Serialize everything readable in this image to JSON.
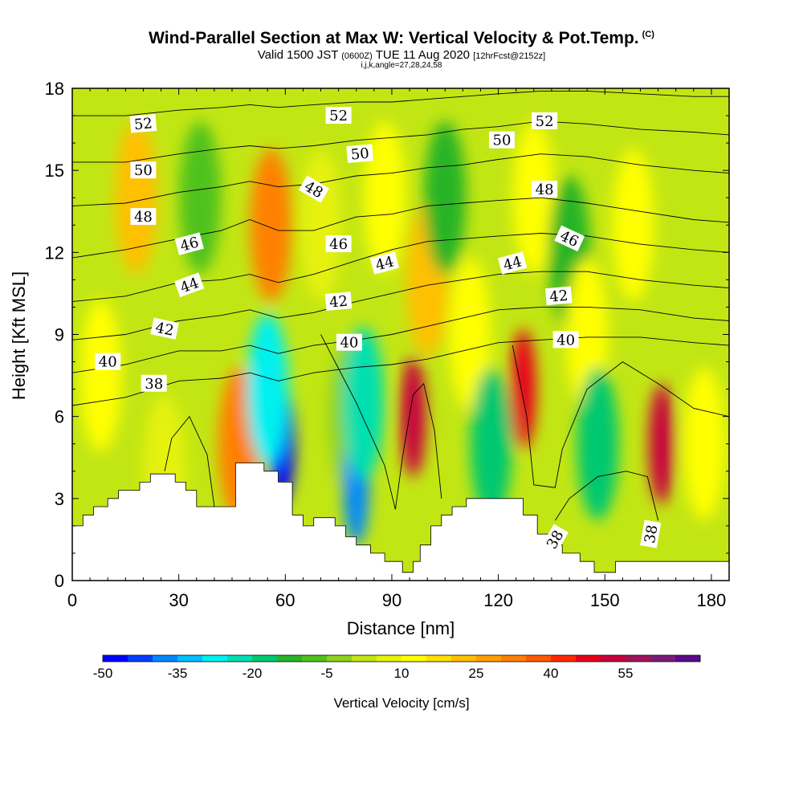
{
  "header": {
    "title": "Wind-Parallel Section at Max W: Vertical Velocity & Pot.Temp.",
    "copyright": "(C)",
    "valid_prefix": "Valid 1500 JST",
    "valid_utc": "(0600Z)",
    "valid_suffix": "TUE 11 Aug 2020",
    "forecast": "[12hrFcst@2152z]",
    "indices": "i,j,k,angle=27,28,24,58"
  },
  "chart_data": {
    "type": "heatmap",
    "xlabel": "Distance [nm]",
    "ylabel": "Height [Kft MSL]",
    "xlim": [
      0,
      185
    ],
    "ylim": [
      0,
      18
    ],
    "xticks": [
      0,
      30,
      60,
      90,
      120,
      150,
      180
    ],
    "yticks": [
      0,
      3,
      6,
      9,
      12,
      15,
      18
    ],
    "colorbar": {
      "label": "Vertical Velocity [cm/s]",
      "levels": [
        -50,
        -45,
        -40,
        -35,
        -30,
        -25,
        -20,
        -15,
        -10,
        -5,
        0,
        5,
        10,
        15,
        20,
        25,
        30,
        35,
        40,
        45,
        50,
        55,
        60,
        65
      ],
      "tick_labels": [
        -50,
        -35,
        -20,
        -5,
        10,
        25,
        40,
        55
      ],
      "colors": [
        "#0000ff",
        "#0040ff",
        "#0088ff",
        "#00c0ff",
        "#00f0f0",
        "#00dfb0",
        "#00c870",
        "#28b428",
        "#4fc21e",
        "#8ed11e",
        "#c2e614",
        "#e6f20a",
        "#ffff00",
        "#ffe000",
        "#ffc000",
        "#ffa000",
        "#ff8000",
        "#ff5a00",
        "#ff2a00",
        "#e6001e",
        "#c8003c",
        "#a0145a",
        "#781e78",
        "#5a0a8c"
      ]
    },
    "vertical_velocity_cells": [
      {
        "x": 8,
        "y": 7.5,
        "w": 10
      },
      {
        "x": 18,
        "y": 14.0,
        "w": 20
      },
      {
        "x": 26,
        "y": 4.0,
        "w": 5
      },
      {
        "x": 36,
        "y": 14.0,
        "w": -10
      },
      {
        "x": 47,
        "y": 5.0,
        "w": 30
      },
      {
        "x": 56,
        "y": 13.0,
        "w": 30
      },
      {
        "x": 59,
        "y": 5.0,
        "w": -50
      },
      {
        "x": 55,
        "y": 7.0,
        "w": -30
      },
      {
        "x": 70,
        "y": 13.0,
        "w": 5
      },
      {
        "x": 78,
        "y": 6.0,
        "w": -5
      },
      {
        "x": 80,
        "y": 3.5,
        "w": -40
      },
      {
        "x": 82,
        "y": 6.5,
        "w": -25
      },
      {
        "x": 88,
        "y": 14.0,
        "w": 10
      },
      {
        "x": 96,
        "y": 6.0,
        "w": 50
      },
      {
        "x": 100,
        "y": 11.0,
        "w": 20
      },
      {
        "x": 105,
        "y": 14.0,
        "w": -15
      },
      {
        "x": 112,
        "y": 9.0,
        "w": 10
      },
      {
        "x": 118,
        "y": 5.0,
        "w": -20
      },
      {
        "x": 127,
        "y": 7.0,
        "w": 45
      },
      {
        "x": 130,
        "y": 14.0,
        "w": 10
      },
      {
        "x": 140,
        "y": 12.0,
        "w": -15
      },
      {
        "x": 145,
        "y": 9.0,
        "w": 10
      },
      {
        "x": 148,
        "y": 5.0,
        "w": -20
      },
      {
        "x": 158,
        "y": 13.0,
        "w": 10
      },
      {
        "x": 166,
        "y": 5.0,
        "w": 50
      },
      {
        "x": 178,
        "y": 5.0,
        "w": 12
      }
    ],
    "terrain": [
      [
        0,
        2.0
      ],
      [
        3,
        2.0
      ],
      [
        3,
        2.4
      ],
      [
        6,
        2.4
      ],
      [
        6,
        2.7
      ],
      [
        10,
        2.7
      ],
      [
        10,
        3.0
      ],
      [
        13,
        3.0
      ],
      [
        13,
        3.3
      ],
      [
        19,
        3.3
      ],
      [
        19,
        3.6
      ],
      [
        22,
        3.6
      ],
      [
        22,
        3.9
      ],
      [
        29,
        3.9
      ],
      [
        29,
        3.6
      ],
      [
        32,
        3.6
      ],
      [
        32,
        3.3
      ],
      [
        35,
        3.3
      ],
      [
        35,
        2.7
      ],
      [
        46,
        2.7
      ],
      [
        46,
        4.3
      ],
      [
        54,
        4.3
      ],
      [
        54,
        4.0
      ],
      [
        58,
        4.0
      ],
      [
        58,
        3.6
      ],
      [
        62,
        3.6
      ],
      [
        62,
        2.4
      ],
      [
        65,
        2.4
      ],
      [
        65,
        2.0
      ],
      [
        68,
        2.0
      ],
      [
        68,
        2.3
      ],
      [
        74,
        2.3
      ],
      [
        74,
        2.0
      ],
      [
        77,
        2.0
      ],
      [
        77,
        1.6
      ],
      [
        80,
        1.6
      ],
      [
        80,
        1.3
      ],
      [
        84,
        1.3
      ],
      [
        84,
        1.0
      ],
      [
        88,
        1.0
      ],
      [
        88,
        0.7
      ],
      [
        93,
        0.7
      ],
      [
        93,
        0.3
      ],
      [
        96,
        0.3
      ],
      [
        96,
        0.7
      ],
      [
        98,
        0.7
      ],
      [
        98,
        1.3
      ],
      [
        101,
        1.3
      ],
      [
        101,
        2.0
      ],
      [
        104,
        2.0
      ],
      [
        104,
        2.4
      ],
      [
        107,
        2.4
      ],
      [
        107,
        2.7
      ],
      [
        111,
        2.7
      ],
      [
        111,
        3.0
      ],
      [
        127,
        3.0
      ],
      [
        127,
        2.4
      ],
      [
        131,
        2.4
      ],
      [
        131,
        1.7
      ],
      [
        135,
        1.7
      ],
      [
        135,
        1.3
      ],
      [
        138,
        1.3
      ],
      [
        138,
        1.0
      ],
      [
        143,
        1.0
      ],
      [
        143,
        0.7
      ],
      [
        147,
        0.7
      ],
      [
        147,
        0.3
      ],
      [
        153,
        0.3
      ],
      [
        153,
        0.7
      ],
      [
        185,
        0.7
      ]
    ],
    "isentropes": [
      {
        "value": 38,
        "points": [
          [
            0,
            6.4
          ],
          [
            15,
            6.7
          ],
          [
            30,
            7.3
          ],
          [
            42,
            7.4
          ],
          [
            50,
            7.6
          ],
          [
            58,
            7.3
          ],
          [
            68,
            7.6
          ],
          [
            80,
            7.8
          ],
          [
            90,
            7.9
          ],
          [
            100,
            8.1
          ],
          [
            110,
            8.4
          ],
          [
            120,
            8.7
          ],
          [
            132,
            8.8
          ],
          [
            145,
            8.9
          ],
          [
            160,
            8.9
          ],
          [
            175,
            8.7
          ],
          [
            185,
            8.6
          ]
        ]
      },
      {
        "value": 40,
        "points": [
          [
            0,
            7.6
          ],
          [
            15,
            7.9
          ],
          [
            30,
            8.4
          ],
          [
            42,
            8.4
          ],
          [
            50,
            8.6
          ],
          [
            58,
            8.3
          ],
          [
            68,
            8.6
          ],
          [
            80,
            8.8
          ],
          [
            90,
            9.0
          ],
          [
            100,
            9.3
          ],
          [
            110,
            9.6
          ],
          [
            120,
            9.9
          ],
          [
            132,
            10.0
          ],
          [
            145,
            10.0
          ],
          [
            160,
            9.9
          ],
          [
            175,
            9.6
          ],
          [
            185,
            9.5
          ]
        ]
      },
      {
        "value": 42,
        "points": [
          [
            0,
            8.8
          ],
          [
            15,
            9.0
          ],
          [
            30,
            9.5
          ],
          [
            42,
            9.7
          ],
          [
            50,
            9.9
          ],
          [
            58,
            9.6
          ],
          [
            68,
            9.8
          ],
          [
            80,
            10.2
          ],
          [
            90,
            10.5
          ],
          [
            100,
            10.8
          ],
          [
            110,
            11.0
          ],
          [
            120,
            11.2
          ],
          [
            132,
            11.3
          ],
          [
            145,
            11.3
          ],
          [
            160,
            11.0
          ],
          [
            175,
            10.8
          ],
          [
            185,
            10.7
          ]
        ]
      },
      {
        "value": 44,
        "points": [
          [
            0,
            10.2
          ],
          [
            15,
            10.4
          ],
          [
            30,
            10.9
          ],
          [
            42,
            11.0
          ],
          [
            50,
            11.2
          ],
          [
            58,
            10.9
          ],
          [
            68,
            11.2
          ],
          [
            80,
            11.7
          ],
          [
            90,
            12.1
          ],
          [
            100,
            12.4
          ],
          [
            110,
            12.5
          ],
          [
            120,
            12.6
          ],
          [
            132,
            12.7
          ],
          [
            145,
            12.6
          ],
          [
            160,
            12.3
          ],
          [
            175,
            12.1
          ],
          [
            185,
            12.0
          ]
        ]
      },
      {
        "value": 46,
        "points": [
          [
            0,
            11.8
          ],
          [
            15,
            12.1
          ],
          [
            30,
            12.5
          ],
          [
            42,
            12.8
          ],
          [
            50,
            13.2
          ],
          [
            58,
            12.8
          ],
          [
            68,
            12.8
          ],
          [
            80,
            13.3
          ],
          [
            90,
            13.4
          ],
          [
            100,
            13.7
          ],
          [
            110,
            13.8
          ],
          [
            120,
            13.9
          ],
          [
            132,
            14.0
          ],
          [
            145,
            13.8
          ],
          [
            160,
            13.5
          ],
          [
            175,
            13.2
          ],
          [
            185,
            13.1
          ]
        ]
      },
      {
        "value": 48,
        "points": [
          [
            0,
            13.7
          ],
          [
            15,
            13.8
          ],
          [
            30,
            14.2
          ],
          [
            42,
            14.4
          ],
          [
            50,
            14.6
          ],
          [
            58,
            14.4
          ],
          [
            68,
            14.5
          ],
          [
            80,
            14.8
          ],
          [
            90,
            14.9
          ],
          [
            100,
            15.1
          ],
          [
            110,
            15.2
          ],
          [
            120,
            15.4
          ],
          [
            132,
            15.6
          ],
          [
            145,
            15.5
          ],
          [
            160,
            15.2
          ],
          [
            175,
            15.0
          ],
          [
            185,
            14.9
          ]
        ]
      },
      {
        "value": 50,
        "points": [
          [
            0,
            15.3
          ],
          [
            15,
            15.3
          ],
          [
            30,
            15.6
          ],
          [
            42,
            15.8
          ],
          [
            50,
            15.9
          ],
          [
            58,
            15.8
          ],
          [
            68,
            15.9
          ],
          [
            80,
            16.1
          ],
          [
            90,
            16.2
          ],
          [
            100,
            16.3
          ],
          [
            110,
            16.5
          ],
          [
            120,
            16.6
          ],
          [
            132,
            16.8
          ],
          [
            145,
            16.7
          ],
          [
            160,
            16.5
          ],
          [
            175,
            16.4
          ],
          [
            185,
            16.3
          ]
        ]
      },
      {
        "value": 52,
        "points": [
          [
            0,
            17.0
          ],
          [
            15,
            17.0
          ],
          [
            30,
            17.2
          ],
          [
            42,
            17.3
          ],
          [
            50,
            17.4
          ],
          [
            58,
            17.3
          ],
          [
            68,
            17.4
          ],
          [
            80,
            17.5
          ],
          [
            90,
            17.5
          ],
          [
            100,
            17.6
          ],
          [
            110,
            17.7
          ],
          [
            120,
            17.8
          ],
          [
            132,
            17.9
          ],
          [
            145,
            17.9
          ],
          [
            160,
            17.8
          ],
          [
            175,
            17.7
          ],
          [
            185,
            17.7
          ]
        ]
      }
    ],
    "contour_labels": [
      {
        "text": "52",
        "x": 20,
        "y": 16.7,
        "rot": -5
      },
      {
        "text": "50",
        "x": 20,
        "y": 15.0,
        "rot": 0
      },
      {
        "text": "48",
        "x": 20,
        "y": 13.3,
        "rot": 0
      },
      {
        "text": "46",
        "x": 33,
        "y": 12.3,
        "rot": -15
      },
      {
        "text": "44",
        "x": 33,
        "y": 10.8,
        "rot": -20
      },
      {
        "text": "42",
        "x": 26,
        "y": 9.2,
        "rot": 12
      },
      {
        "text": "40",
        "x": 10,
        "y": 8.0,
        "rot": 0
      },
      {
        "text": "38",
        "x": 23,
        "y": 7.2,
        "rot": 0
      },
      {
        "text": "52",
        "x": 75,
        "y": 17.0,
        "rot": 0
      },
      {
        "text": "50",
        "x": 81,
        "y": 15.6,
        "rot": -5
      },
      {
        "text": "48",
        "x": 68,
        "y": 14.3,
        "rot": 30
      },
      {
        "text": "46",
        "x": 75,
        "y": 12.3,
        "rot": 0
      },
      {
        "text": "44",
        "x": 88,
        "y": 11.6,
        "rot": -15
      },
      {
        "text": "42",
        "x": 75,
        "y": 10.2,
        "rot": -5
      },
      {
        "text": "40",
        "x": 78,
        "y": 8.7,
        "rot": 0
      },
      {
        "text": "52",
        "x": 133,
        "y": 16.8,
        "rot": 0
      },
      {
        "text": "50",
        "x": 121,
        "y": 16.1,
        "rot": 0
      },
      {
        "text": "48",
        "x": 133,
        "y": 14.3,
        "rot": 0
      },
      {
        "text": "46",
        "x": 140,
        "y": 12.5,
        "rot": 25
      },
      {
        "text": "44",
        "x": 124,
        "y": 11.6,
        "rot": -15
      },
      {
        "text": "42",
        "x": 137,
        "y": 10.4,
        "rot": -5
      },
      {
        "text": "40",
        "x": 139,
        "y": 8.8,
        "rot": 0
      },
      {
        "text": "38",
        "x": 136,
        "y": 1.5,
        "rot": -60
      },
      {
        "text": "38",
        "x": 163,
        "y": 1.7,
        "rot": -80
      }
    ],
    "low_level_contours": [
      {
        "value": 38,
        "points": [
          [
            26,
            4.0
          ],
          [
            28,
            5.2
          ],
          [
            33,
            6.0
          ],
          [
            38,
            4.6
          ],
          [
            40,
            2.7
          ]
        ]
      },
      {
        "value": 38,
        "points": [
          [
            70,
            9.0
          ],
          [
            80,
            6.5
          ],
          [
            88,
            4.2
          ],
          [
            91,
            2.6
          ],
          [
            93,
            4.5
          ],
          [
            96,
            6.8
          ],
          [
            99,
            7.2
          ],
          [
            102,
            5.5
          ],
          [
            104,
            3.0
          ]
        ]
      },
      {
        "value": 38,
        "points": [
          [
            124,
            8.6
          ],
          [
            128,
            6.0
          ],
          [
            130,
            3.5
          ],
          [
            136,
            3.4
          ],
          [
            138,
            4.8
          ],
          [
            145,
            7.0
          ],
          [
            155,
            8.0
          ],
          [
            165,
            7.2
          ],
          [
            175,
            6.3
          ],
          [
            185,
            6.0
          ]
        ]
      },
      {
        "value": 38,
        "points": [
          [
            136,
            2.2
          ],
          [
            140,
            3.0
          ],
          [
            148,
            3.8
          ],
          [
            156,
            4.0
          ],
          [
            162,
            3.8
          ],
          [
            165,
            2.2
          ]
        ]
      }
    ]
  }
}
